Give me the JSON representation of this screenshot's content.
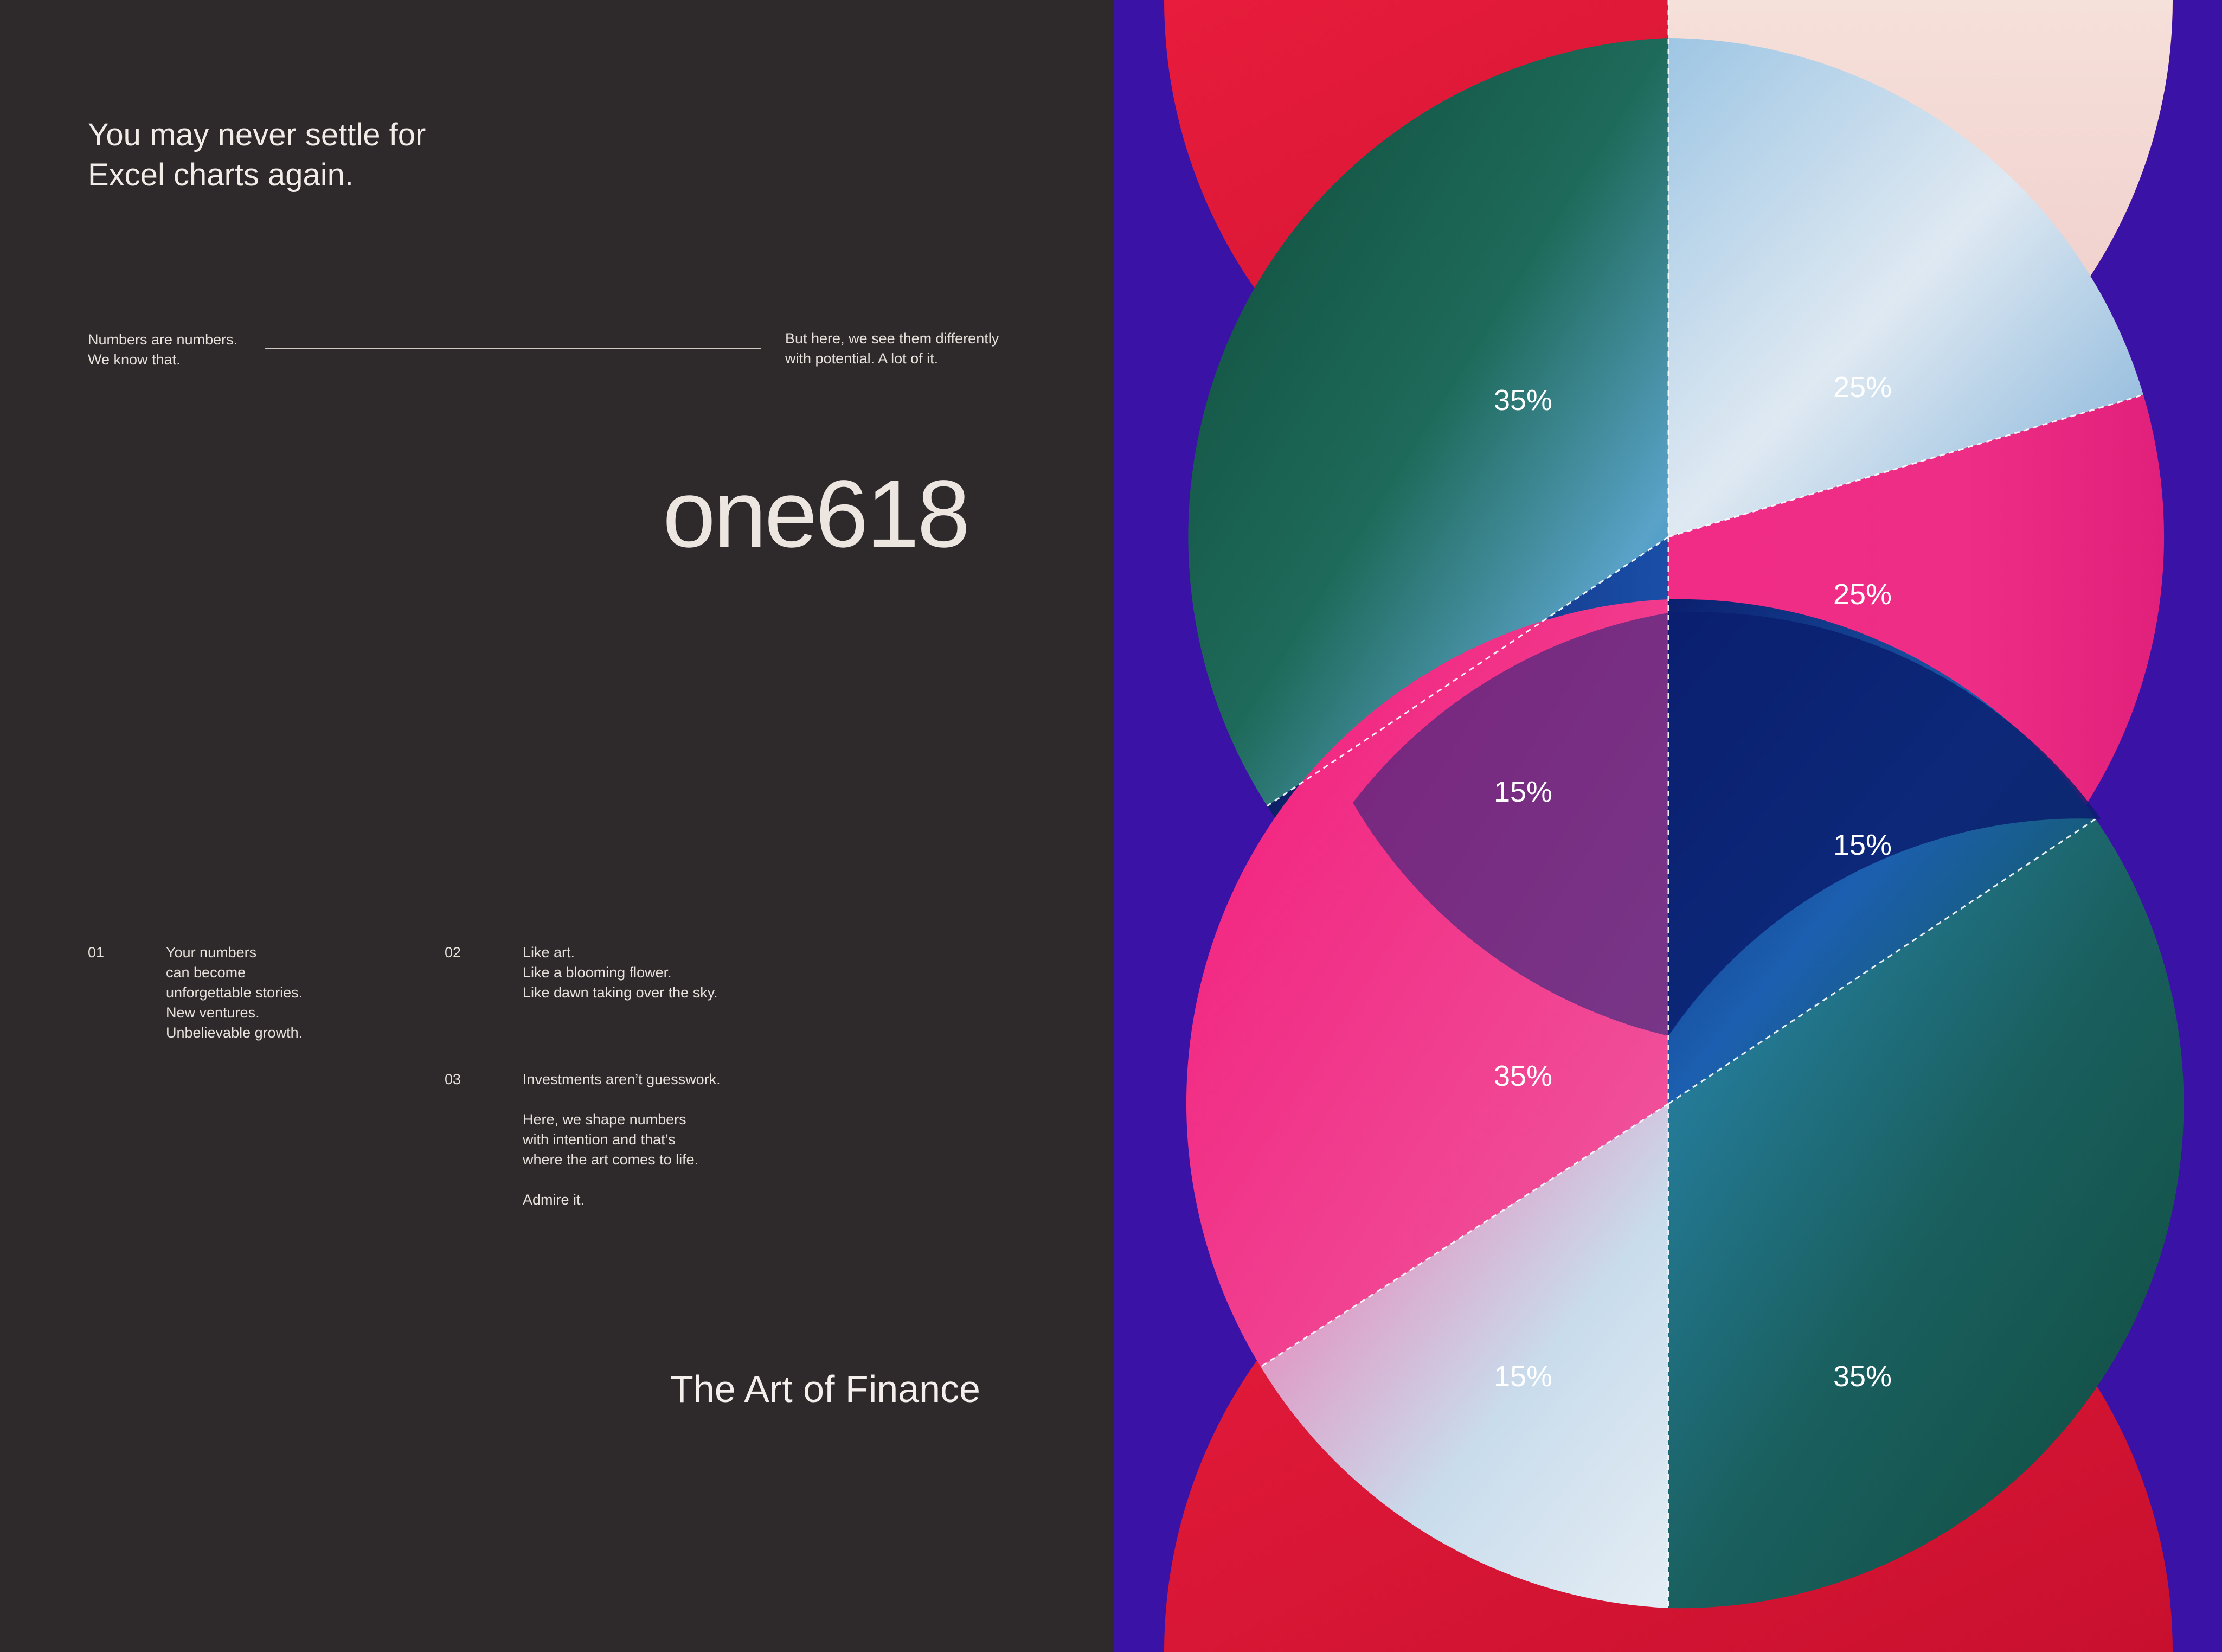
{
  "headline": {
    "line1": "You may never settle for",
    "line2": "Excel charts again."
  },
  "intro": {
    "left": {
      "line1": "Numbers are numbers.",
      "line2": "We know that."
    },
    "right": {
      "line1": "But here, we see them differently",
      "line2": "with potential. A lot of it."
    }
  },
  "brand": {
    "logo": "one618"
  },
  "points": [
    {
      "number": "01",
      "lines": [
        "Your numbers",
        "can become",
        "unforgettable stories.",
        "New ventures.",
        "Unbelievable growth."
      ]
    },
    {
      "number": "02",
      "lines": [
        "Like art.",
        "Like a blooming flower.",
        "Like dawn taking over the sky."
      ]
    },
    {
      "number": "03",
      "lines": [
        "Investments aren’t guesswork.",
        "",
        "Here, we shape numbers",
        "with intention and that’s",
        "where the art comes to life.",
        "",
        "Admire it."
      ]
    }
  ],
  "tagline": "The Art of Finance",
  "artwork": {
    "labels": {
      "top_left_upper": "35%",
      "top_right_upper": "25%",
      "top_right_lower": "25%",
      "top_left_lower": "15%",
      "bottom_right_upper": "15%",
      "bottom_left_upper": "35%",
      "bottom_left_lower": "15%",
      "bottom_right_lower": "35%"
    },
    "colors": {
      "background": "#3a12a6",
      "red": "#e01638",
      "blush": "#f3d6d0",
      "green": "#0f5a40",
      "blue": "#1470b8",
      "navy": "#0b1f6e",
      "pink": "#ee2d86",
      "ice": "#c9dcec"
    }
  }
}
